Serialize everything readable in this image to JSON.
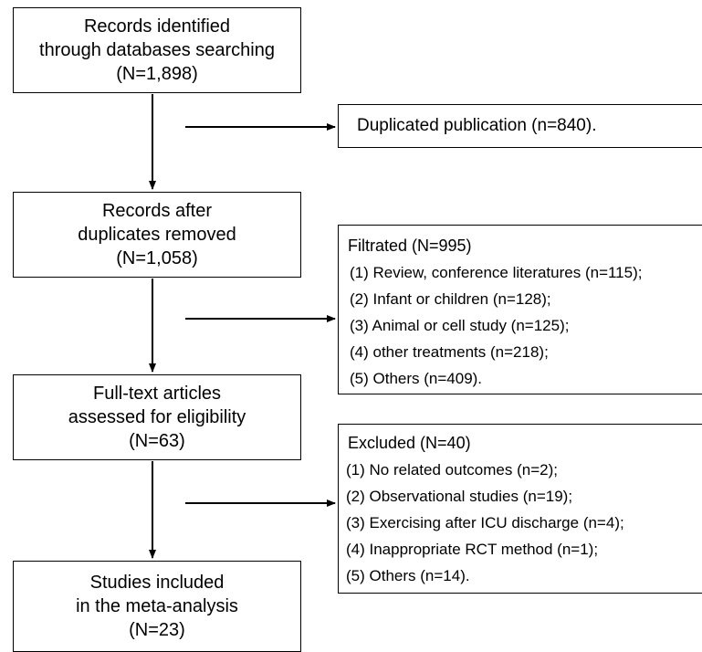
{
  "main_boxes": [
    {
      "lines": [
        "Records identified",
        "through databases searching",
        "(N=1,898)"
      ]
    },
    {
      "lines": [
        "Records after",
        "duplicates removed",
        "(N=1,058)"
      ]
    },
    {
      "lines": [
        "Full-text articles",
        "assessed for eligibility",
        "(N=63)"
      ]
    },
    {
      "lines": [
        "Studies included",
        "in the meta-analysis",
        "(N=23)"
      ]
    }
  ],
  "side_boxes": [
    {
      "title": "Duplicated publication (n=840).",
      "items": []
    },
    {
      "title": "Filtrated (N=995)",
      "items": [
        "(1) Review, conference literatures (n=115);",
        "(2) Infant or children (n=128);",
        "(3) Animal or cell study (n=125);",
        "(4) other treatments (n=218);",
        "(5) Others (n=409)."
      ]
    },
    {
      "title": "Excluded (N=40)",
      "items": [
        "(1) No related outcomes (n=2);",
        "(2) Observational studies (n=19);",
        "(3) Exercising after ICU discharge  (n=4);",
        "(4) Inappropriate RCT method (n=1);",
        "(5) Others (n=14)."
      ]
    }
  ]
}
